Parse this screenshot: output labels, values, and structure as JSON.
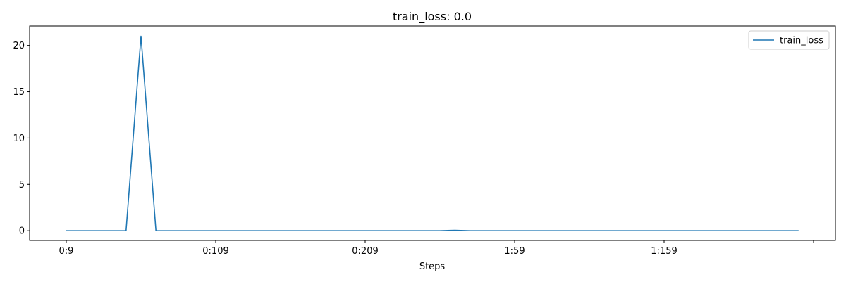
{
  "chart_data": {
    "type": "line",
    "title": "train_loss: 0.0",
    "xlabel": "Steps",
    "ylabel": "",
    "x_ticks": [
      "0:9",
      "0:109",
      "0:209",
      "1:59",
      "1:159",
      ""
    ],
    "y_ticks": [
      0,
      5,
      10,
      15,
      20
    ],
    "ylim": [
      -1.05,
      22.1
    ],
    "grid": false,
    "legend": {
      "placement": "top-right"
    },
    "series": [
      {
        "name": "train_loss",
        "color": "#1f77b4",
        "values": [
          0,
          0,
          0,
          0,
          0,
          21,
          0,
          0,
          0,
          0,
          0,
          0,
          0,
          0,
          0,
          0,
          0,
          0,
          0,
          0,
          0,
          0,
          0,
          0,
          0,
          0,
          0.05,
          0,
          0,
          0,
          0,
          0,
          0,
          0,
          0,
          0,
          0,
          0,
          0,
          0,
          0,
          0,
          0,
          0,
          0,
          0,
          0,
          0,
          0,
          0
        ]
      }
    ]
  }
}
